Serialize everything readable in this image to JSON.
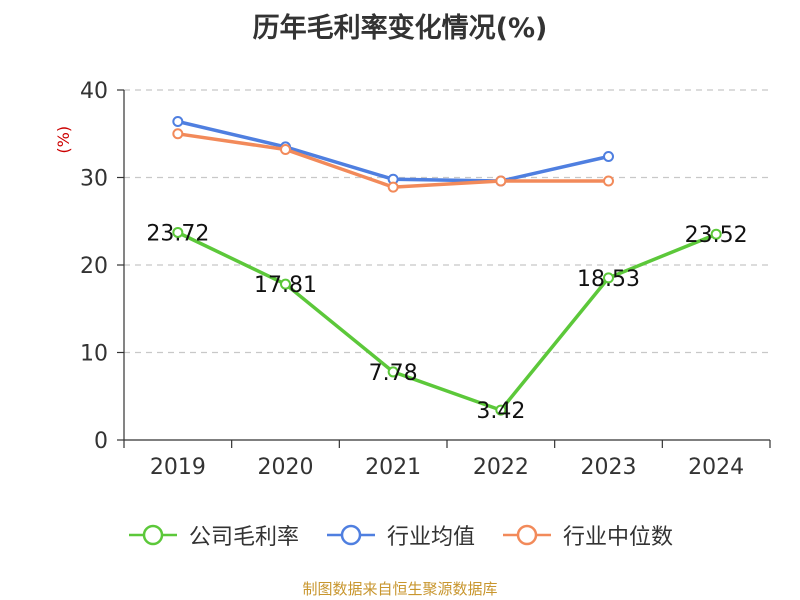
{
  "page": {
    "title": "历年毛利率变化情况(%)",
    "source": "制图数据来自恒生聚源数据库"
  },
  "chart_data": {
    "type": "line",
    "title": "历年毛利率变化情况(%)",
    "ylabel": "(%)",
    "xlabel": "",
    "categories": [
      "2019",
      "2020",
      "2021",
      "2022",
      "2023",
      "2024"
    ],
    "ylim": [
      0,
      40
    ],
    "yticks": [
      0,
      10,
      20,
      30,
      40
    ],
    "grid": true,
    "legend_position": "bottom",
    "series": [
      {
        "name": "公司毛利率",
        "color": "#5cc83a",
        "values": [
          23.72,
          17.81,
          7.78,
          3.42,
          18.53,
          23.52
        ],
        "labels": [
          "23.72",
          "17.81",
          "7.78",
          "3.42",
          "18.53",
          "23.52"
        ]
      },
      {
        "name": "行业均值",
        "color": "#4f7fe0",
        "values": [
          36.4,
          33.5,
          29.8,
          29.6,
          32.4,
          null
        ]
      },
      {
        "name": "行业中位数",
        "color": "#f28a5a",
        "values": [
          35.0,
          33.2,
          28.9,
          29.6,
          29.6,
          null
        ]
      }
    ]
  }
}
